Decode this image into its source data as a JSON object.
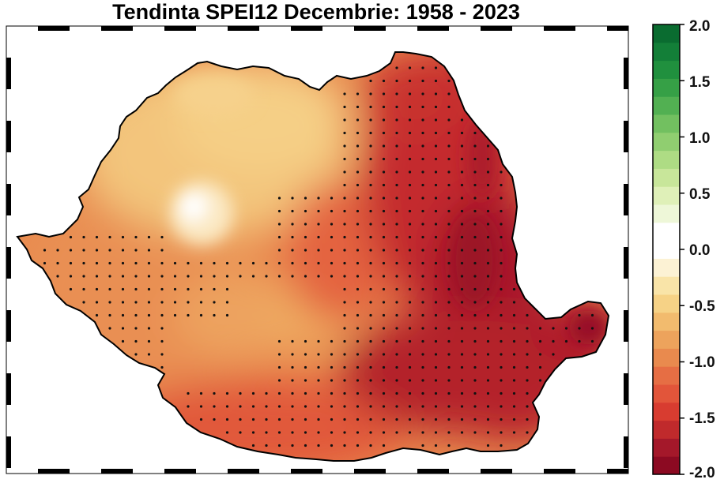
{
  "title": "Tendinta SPEI12 Decembrie: 1958 - 2023",
  "colorbar": {
    "ticks": [
      "2.0",
      "1.5",
      "1.0",
      "0.5",
      "0.0",
      "-0.5",
      "-1.0",
      "-1.5",
      "-2.0"
    ],
    "range": [
      -2.0,
      2.0
    ],
    "colors": [
      "#8c0a22",
      "#a4182a",
      "#c02a2c",
      "#d83c30",
      "#e2553a",
      "#e66e44",
      "#e98a4e",
      "#eda35c",
      "#f2bb6e",
      "#f6d286",
      "#f9e4a8",
      "#fcf2d4",
      "#ffffff",
      "#ffffff",
      "#eef7d8",
      "#dff0b8",
      "#c8e69a",
      "#aedc84",
      "#90ce70",
      "#72c060",
      "#52b052",
      "#36a046",
      "#20903e",
      "#137f38",
      "#0a6c30"
    ]
  },
  "map": {
    "region": "Romania",
    "value_range": [
      -2.0,
      0.0
    ],
    "significance_marker": "dot"
  }
}
